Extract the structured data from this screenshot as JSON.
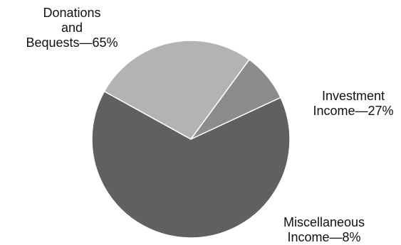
{
  "chart_data": {
    "type": "pie",
    "title": "",
    "slices": [
      {
        "name": "Donations and Bequests",
        "value": 65,
        "color": "#606060",
        "label_lines": [
          "Donations",
          "and",
          "Bequests—65%"
        ]
      },
      {
        "name": "Investment Income",
        "value": 27,
        "color": "#b3b3b3",
        "label_lines": [
          "Investment",
          "Income—27%"
        ]
      },
      {
        "name": "Miscellaneous Income",
        "value": 8,
        "color": "#8c8c8c",
        "label_lines": [
          "Miscellaneous",
          "Income—8%"
        ]
      }
    ],
    "start_angle_deg": 65,
    "direction": "clockwise",
    "legend": "none"
  }
}
